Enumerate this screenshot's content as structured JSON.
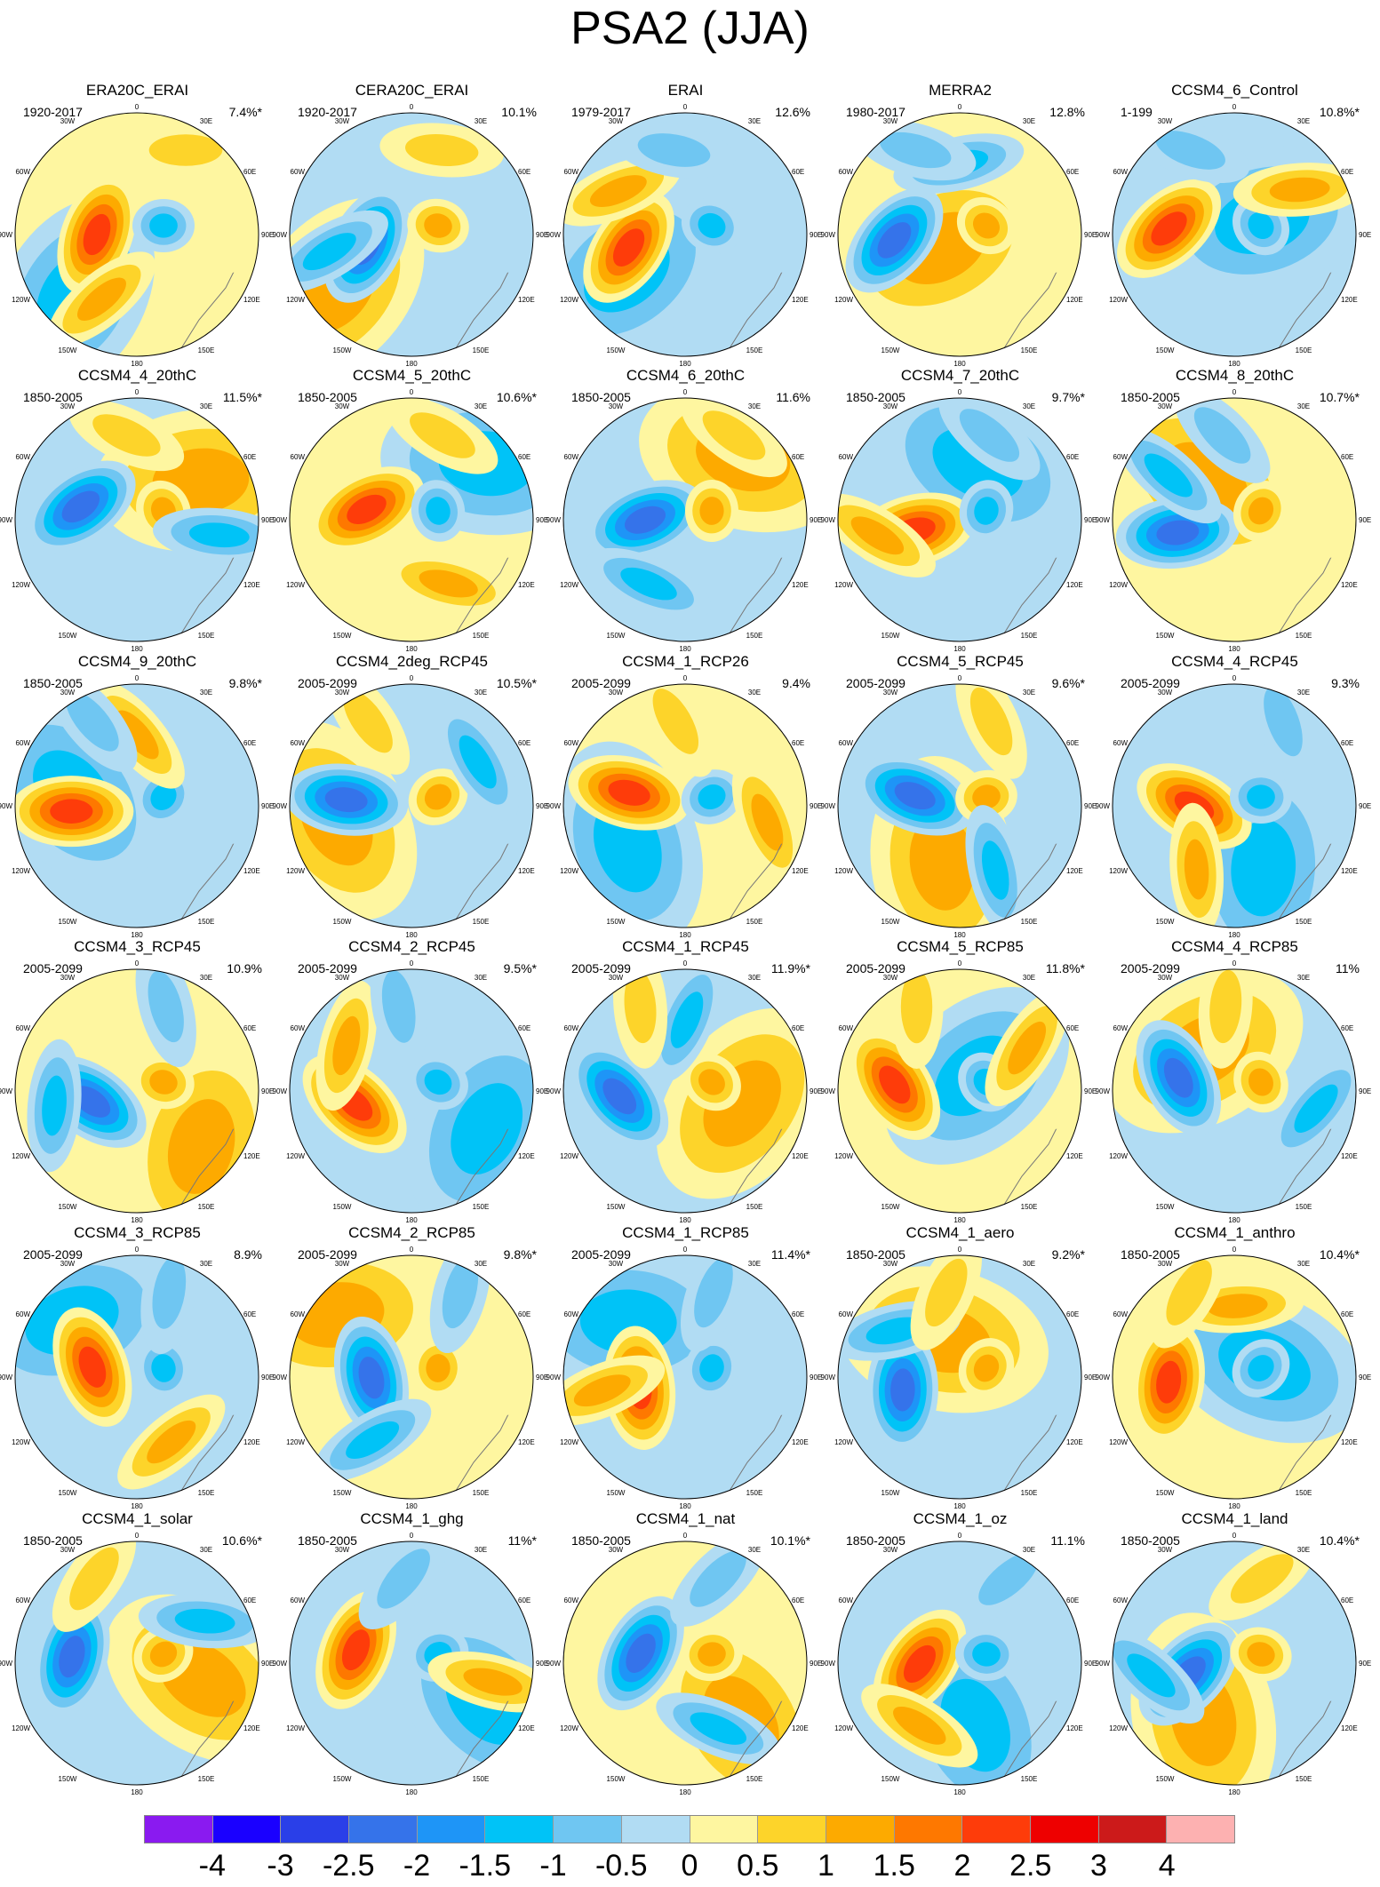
{
  "title": "PSA2 (JJA)",
  "longitude_labels": {
    "top": "0",
    "top_left": "30W",
    "top_right": "30E",
    "upper_left": "60W",
    "upper_right": "60E",
    "left": "90W",
    "right": "90E",
    "lower_left": "120W",
    "lower_right": "120E",
    "bottom_left": "150W",
    "bottom_right": "150E",
    "bottom": "180"
  },
  "panels": [
    {
      "name": "ERA20C_ERAI",
      "period": "1920-2017",
      "pct": "7.4%*"
    },
    {
      "name": "CERA20C_ERAI",
      "period": "1920-2017",
      "pct": "10.1%"
    },
    {
      "name": "ERAI",
      "period": "1979-2017",
      "pct": "12.6%"
    },
    {
      "name": "MERRA2",
      "period": "1980-2017",
      "pct": "12.8%"
    },
    {
      "name": "CCSM4_6_Control",
      "period": "1-199",
      "pct": "10.8%*"
    },
    {
      "name": "CCSM4_4_20thC",
      "period": "1850-2005",
      "pct": "11.5%*"
    },
    {
      "name": "CCSM4_5_20thC",
      "period": "1850-2005",
      "pct": "10.6%*"
    },
    {
      "name": "CCSM4_6_20thC",
      "period": "1850-2005",
      "pct": "11.6%"
    },
    {
      "name": "CCSM4_7_20thC",
      "period": "1850-2005",
      "pct": "9.7%*"
    },
    {
      "name": "CCSM4_8_20thC",
      "period": "1850-2005",
      "pct": "10.7%*"
    },
    {
      "name": "CCSM4_9_20thC",
      "period": "1850-2005",
      "pct": "9.8%*"
    },
    {
      "name": "CCSM4_2deg_RCP45",
      "period": "2005-2099",
      "pct": "10.5%*"
    },
    {
      "name": "CCSM4_1_RCP26",
      "period": "2005-2099",
      "pct": "9.4%"
    },
    {
      "name": "CCSM4_5_RCP45",
      "period": "2005-2099",
      "pct": "9.6%*"
    },
    {
      "name": "CCSM4_4_RCP45",
      "period": "2005-2099",
      "pct": "9.3%"
    },
    {
      "name": "CCSM4_3_RCP45",
      "period": "2005-2099",
      "pct": "10.9%"
    },
    {
      "name": "CCSM4_2_RCP45",
      "period": "2005-2099",
      "pct": "9.5%*"
    },
    {
      "name": "CCSM4_1_RCP45",
      "period": "2005-2099",
      "pct": "11.9%*"
    },
    {
      "name": "CCSM4_5_RCP85",
      "period": "2005-2099",
      "pct": "11.8%*"
    },
    {
      "name": "CCSM4_4_RCP85",
      "period": "2005-2099",
      "pct": "11%"
    },
    {
      "name": "CCSM4_3_RCP85",
      "period": "2005-2099",
      "pct": "8.9%"
    },
    {
      "name": "CCSM4_2_RCP85",
      "period": "2005-2099",
      "pct": "9.8%*"
    },
    {
      "name": "CCSM4_1_RCP85",
      "period": "2005-2099",
      "pct": "11.4%*"
    },
    {
      "name": "CCSM4_1_aero",
      "period": "1850-2005",
      "pct": "9.2%*"
    },
    {
      "name": "CCSM4_1_anthro",
      "period": "1850-2005",
      "pct": "10.4%*"
    },
    {
      "name": "CCSM4_1_solar",
      "period": "1850-2005",
      "pct": "10.6%*"
    },
    {
      "name": "CCSM4_1_ghg",
      "period": "1850-2005",
      "pct": "11%*"
    },
    {
      "name": "CCSM4_1_nat",
      "period": "1850-2005",
      "pct": "10.1%*"
    },
    {
      "name": "CCSM4_1_oz",
      "period": "1850-2005",
      "pct": "11.1%"
    },
    {
      "name": "CCSM4_1_land",
      "period": "1850-2005",
      "pct": "10.4%*"
    }
  ],
  "colorbar": {
    "colors": [
      "#8a1af0",
      "#1a00ff",
      "#2a3fe8",
      "#3573ea",
      "#1e95f7",
      "#00c3f7",
      "#6fc6f2",
      "#b1dcf3",
      "#fef6a0",
      "#fdd42a",
      "#fdaa00",
      "#fe7800",
      "#fe3c0a",
      "#ee0000",
      "#cc1a1a",
      "#fdb1b1"
    ],
    "labels": [
      "-4",
      "-3",
      "-2.5",
      "-2",
      "-1.5",
      "-1",
      "-0.5",
      "0",
      "0.5",
      "1",
      "1.5",
      "2",
      "2.5",
      "3",
      "4"
    ]
  }
}
